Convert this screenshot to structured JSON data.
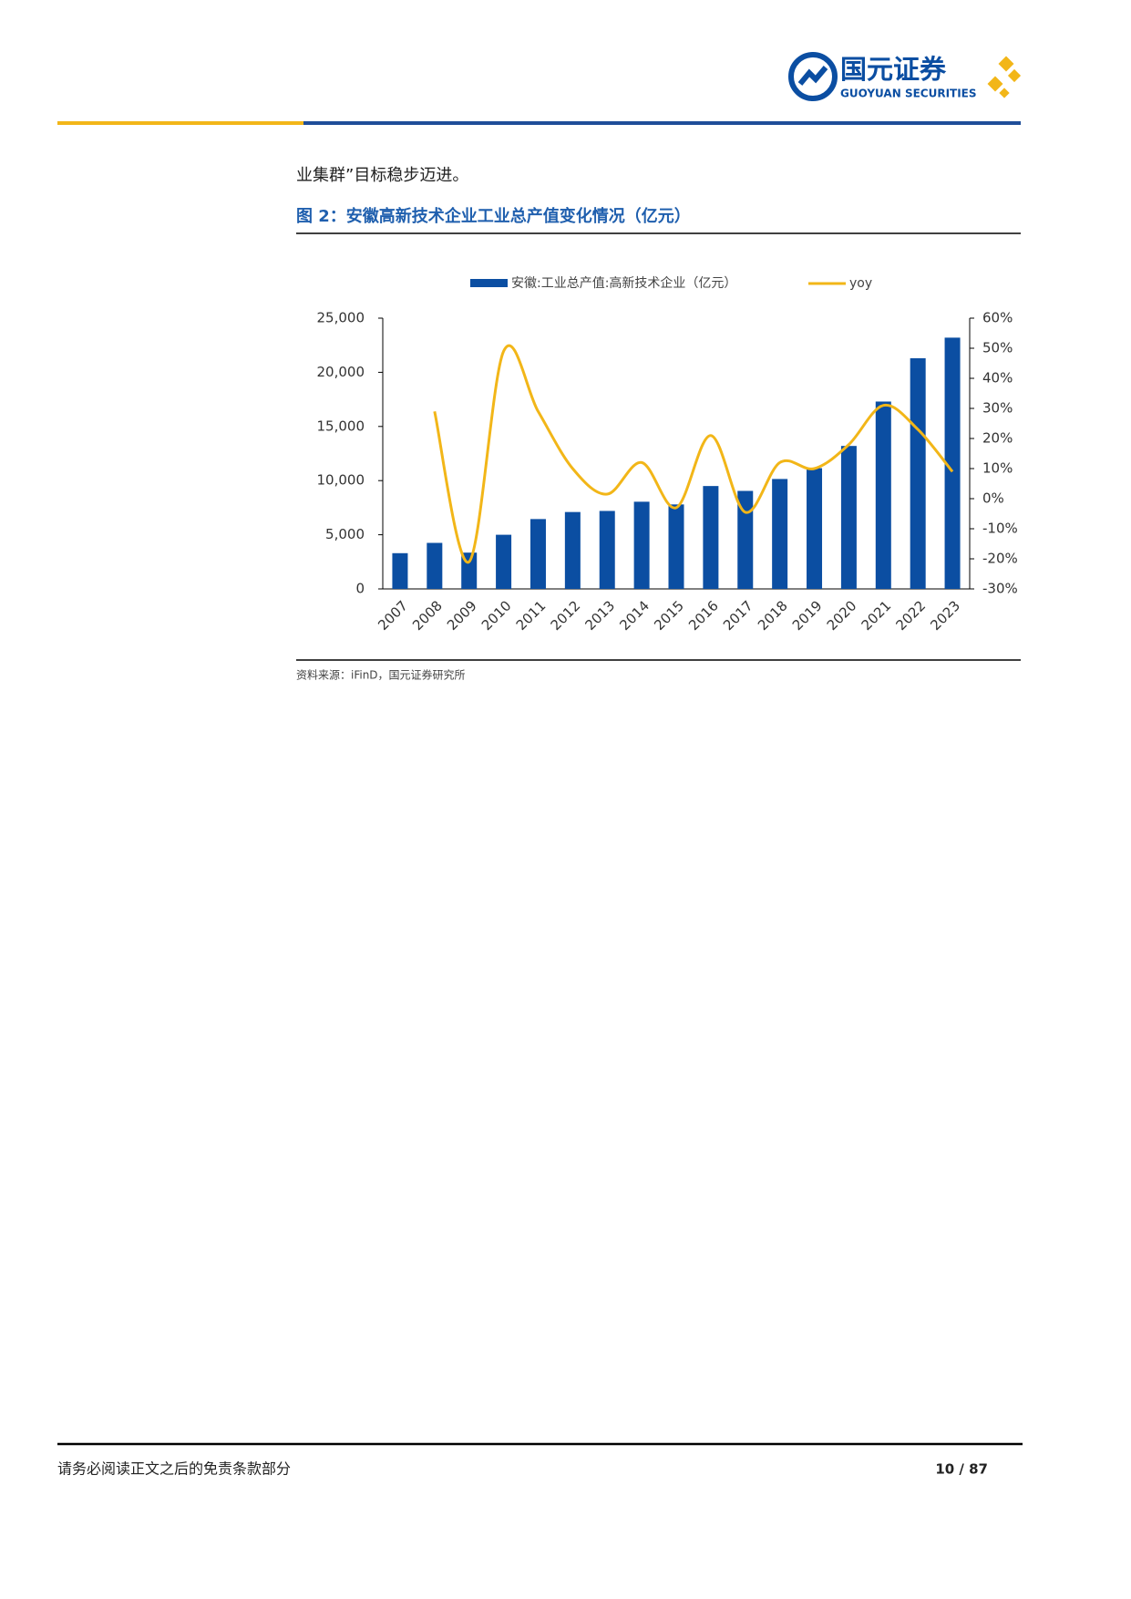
{
  "header": {
    "logo_cn": "国元证券",
    "logo_en": "GUOYUAN SECURITIES"
  },
  "body": {
    "text": "业集群”目标稳步迈进。"
  },
  "figure": {
    "caption": "图 2：安徽高新技术企业工业总产值变化情况（亿元）",
    "source": "资料来源：iFinD，国元证券研究所"
  },
  "footer": {
    "disclaimer": "请务必阅读正文之后的免责条款部分",
    "page": "10 / 87"
  },
  "chart_data": {
    "type": "bar",
    "categories": [
      "2007",
      "2008",
      "2009",
      "2010",
      "2011",
      "2012",
      "2013",
      "2014",
      "2015",
      "2016",
      "2017",
      "2018",
      "2019",
      "2020",
      "2021",
      "2022",
      "2023"
    ],
    "series": [
      {
        "name": "安徽:工业总产值:高新技术企业（亿元）",
        "type": "bar",
        "color": "#0b4ea2",
        "values": [
          3300,
          4250,
          3350,
          5000,
          6450,
          7100,
          7200,
          8050,
          7800,
          9500,
          9050,
          10150,
          11150,
          13200,
          17300,
          21300,
          23200
        ]
      },
      {
        "name": "yoy",
        "type": "line",
        "axis": "y2",
        "color": "#f2b618",
        "values": [
          null,
          29,
          -21,
          49,
          29,
          10,
          1.5,
          12,
          -3,
          21,
          -4.5,
          12,
          10,
          18,
          31,
          23,
          9
        ]
      }
    ],
    "ylim": [
      0,
      25000
    ],
    "yticks": [
      0,
      {
        "value": 5000,
        "label": "5,000"
      },
      {
        "value": 10000,
        "label": "10,000"
      },
      {
        "value": 15000,
        "label": "15,000"
      },
      {
        "value": 20000,
        "label": "20,000"
      },
      {
        "value": 25000,
        "label": "25,000"
      }
    ],
    "y2lim": [
      -30,
      60
    ],
    "y2ticks": [
      {
        "value": -30,
        "label": "-30%"
      },
      {
        "value": -20,
        "label": "-20%"
      },
      {
        "value": -10,
        "label": "-10%"
      },
      {
        "value": 0,
        "label": "0%"
      },
      {
        "value": 10,
        "label": "10%"
      },
      {
        "value": 20,
        "label": "20%"
      },
      {
        "value": 30,
        "label": "30%"
      },
      {
        "value": 40,
        "label": "40%"
      },
      {
        "value": 50,
        "label": "50%"
      },
      {
        "value": 60,
        "label": "60%"
      }
    ],
    "legend": "top"
  }
}
